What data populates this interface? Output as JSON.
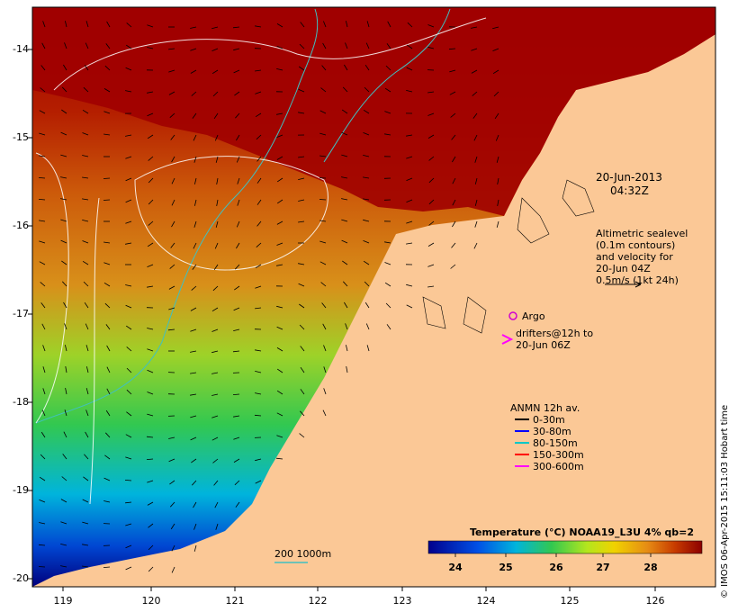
{
  "map": {
    "y_ticks": [
      "-14",
      "-15",
      "-16",
      "-17",
      "-18",
      "-19",
      "-20"
    ],
    "x_ticks": [
      "119",
      "120",
      "121",
      "122",
      "123",
      "124",
      "125",
      "126"
    ],
    "date_title": "20-Jun-2013",
    "time_title": "04:32Z",
    "altimetry_lines": [
      "Altimetric sealevel",
      "(0.1m contours)",
      "and velocity for",
      "20-Jun 04Z",
      "0.5m/s (1kt 24h)"
    ],
    "argo_label": "Argo",
    "drifters_line1": "drifters@12h to",
    "drifters_line2": "20-Jun 06Z",
    "anmn_title": "ANMN 12h av.",
    "anmn_legend": [
      {
        "label": "0-30m",
        "color": "#000000"
      },
      {
        "label": "30-80m",
        "color": "#0000ff"
      },
      {
        "label": "80-150m",
        "color": "#00c8c8"
      },
      {
        "label": "150-300m",
        "color": "#ff0000"
      },
      {
        "label": "300-600m",
        "color": "#ff00ff"
      }
    ],
    "bathy_label": "200  1000m",
    "colorbar_title": "Temperature (°C) NOAA19_L3U 4% qb=2",
    "colorbar_ticks": [
      "24",
      "25",
      "26",
      "27",
      "28"
    ],
    "colorbar_range": [
      23.5,
      28.9
    ],
    "credit": "© IMOS 06-Apr-2015 15:11:03 Hobart time",
    "colors": {
      "land": "#fbc896",
      "hot": "#a00000",
      "warm": "#d2680a",
      "cold": "#00008c",
      "coast_contour": "#40c0c0"
    }
  }
}
